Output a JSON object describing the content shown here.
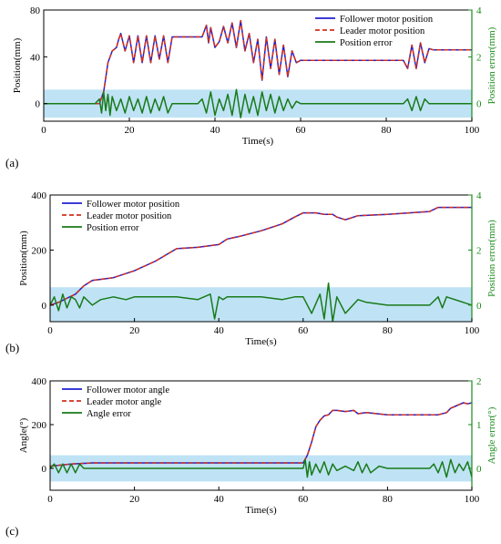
{
  "chart_data": [
    {
      "type": "line",
      "panel_label": "(a)",
      "xlabel": "Time(s)",
      "ylabel": "Position(mm)",
      "y2label": "Position error(mm)",
      "xlim": [
        0,
        100
      ],
      "ylim": [
        -15,
        80
      ],
      "y2lim": [
        -0.75,
        4
      ],
      "xticks": [
        "0",
        "20",
        "40",
        "60",
        "80",
        "100"
      ],
      "yticks": [
        "0",
        "40",
        "80"
      ],
      "y2ticks": [
        "0",
        "2",
        "4"
      ],
      "band": [
        -0.6,
        0.6
      ],
      "legend_position": "top-right",
      "colors": {
        "follower": "#2020d0",
        "leader": "#d03020",
        "error": "#1a7a1a",
        "band": "#bfe3f5",
        "y2axis": "#1a8a1a"
      },
      "series": [
        {
          "name": "Follower motor position",
          "axis": "left",
          "style": "solid",
          "x": [
            0,
            12,
            13,
            14,
            15,
            16,
            17,
            17.5,
            18,
            19,
            20,
            21,
            22,
            23,
            24,
            25,
            26,
            27,
            28,
            29,
            30,
            37,
            38,
            38.5,
            39,
            40,
            41,
            42,
            43,
            44,
            45,
            46,
            47,
            48,
            49,
            50,
            51,
            52,
            53,
            54,
            55,
            56,
            57,
            58,
            59,
            60,
            62,
            84,
            85,
            86,
            87,
            88,
            89,
            90,
            91,
            100
          ],
          "y": [
            0,
            0,
            0,
            10,
            35,
            45,
            48,
            55,
            60,
            45,
            58,
            35,
            58,
            35,
            58,
            35,
            58,
            38,
            58,
            35,
            57,
            57,
            67,
            52,
            65,
            48,
            53,
            66,
            52,
            69,
            48,
            71,
            45,
            60,
            35,
            55,
            20,
            57,
            30,
            55,
            25,
            50,
            23,
            45,
            35,
            37,
            37,
            37,
            30,
            50,
            30,
            52,
            35,
            47,
            46,
            46
          ]
        },
        {
          "name": "Leader motor position",
          "axis": "left",
          "style": "dashed",
          "x": [
            0,
            12,
            13,
            14,
            15,
            16,
            17,
            17.5,
            18,
            19,
            20,
            21,
            22,
            23,
            24,
            25,
            26,
            27,
            28,
            29,
            30,
            37,
            38,
            38.5,
            39,
            40,
            41,
            42,
            43,
            44,
            45,
            46,
            47,
            48,
            49,
            50,
            51,
            52,
            53,
            54,
            55,
            56,
            57,
            58,
            59,
            60,
            62,
            84,
            85,
            86,
            87,
            88,
            89,
            90,
            91,
            100
          ],
          "y": [
            0,
            0,
            0,
            10,
            35,
            45,
            48,
            55,
            60,
            45,
            58,
            35,
            58,
            35,
            58,
            35,
            58,
            38,
            58,
            35,
            57,
            57,
            67,
            52,
            65,
            48,
            53,
            66,
            52,
            69,
            48,
            71,
            45,
            60,
            35,
            55,
            20,
            57,
            30,
            55,
            25,
            50,
            23,
            45,
            35,
            37,
            37,
            37,
            30,
            50,
            30,
            52,
            35,
            47,
            46,
            46
          ]
        },
        {
          "name": "Position error",
          "axis": "right",
          "x": [
            0,
            12,
            13,
            13.5,
            14,
            14.5,
            15,
            15.5,
            16,
            17,
            18,
            19,
            20,
            21,
            22,
            23,
            24,
            25,
            26,
            27,
            28,
            29,
            30,
            36,
            37,
            38,
            39,
            40,
            41,
            42,
            43,
            44,
            45,
            46,
            47,
            48,
            49,
            50,
            51,
            52,
            53,
            54,
            55,
            56,
            57,
            58,
            59,
            60,
            84,
            85,
            86,
            87,
            88,
            89,
            90,
            100
          ],
          "y": [
            0,
            0,
            0.2,
            -0.4,
            0.5,
            -0.3,
            0.4,
            -0.5,
            0.3,
            -0.3,
            0.2,
            -0.4,
            0.3,
            -0.3,
            0.2,
            -0.4,
            0.3,
            -0.4,
            0.2,
            -0.3,
            0.3,
            -0.4,
            0,
            0,
            0.2,
            -0.4,
            0.5,
            -0.5,
            0.2,
            -0.3,
            0.4,
            -0.5,
            0.6,
            -0.6,
            0.4,
            -0.4,
            0.3,
            -0.5,
            0.5,
            -0.3,
            0.4,
            -0.4,
            0.3,
            -0.3,
            0.2,
            -0.2,
            0.1,
            0,
            0,
            0.2,
            -0.3,
            0.3,
            -0.3,
            0.2,
            0,
            0
          ]
        }
      ]
    },
    {
      "type": "line",
      "panel_label": "(b)",
      "xlabel": "Time(s)",
      "ylabel": "Position(mm)",
      "y2label": "Position error(mm)",
      "xlim": [
        0,
        100
      ],
      "ylim": [
        -60,
        400
      ],
      "y2lim": [
        -0.6,
        4
      ],
      "xticks": [
        "0",
        "20",
        "40",
        "60",
        "80",
        "100"
      ],
      "yticks": [
        "0",
        "200",
        "400"
      ],
      "y2ticks": [
        "0",
        "2",
        "4"
      ],
      "band": [
        -0.6,
        0.65
      ],
      "legend_position": "top-left",
      "colors": {
        "follower": "#2020d0",
        "leader": "#d03020",
        "error": "#1a7a1a",
        "band": "#bfe3f5",
        "y2axis": "#1a8a1a"
      },
      "series": [
        {
          "name": "Follower motor position",
          "axis": "left",
          "style": "solid",
          "x": [
            0,
            2,
            4,
            6,
            8,
            10,
            15,
            20,
            25,
            30,
            35,
            40,
            42,
            45,
            50,
            55,
            58,
            60,
            63,
            65,
            67,
            68,
            70,
            73,
            80,
            90,
            92,
            100
          ],
          "y": [
            0,
            10,
            25,
            40,
            70,
            90,
            100,
            125,
            160,
            205,
            210,
            220,
            240,
            250,
            270,
            295,
            320,
            335,
            335,
            330,
            330,
            320,
            310,
            325,
            330,
            340,
            355,
            355
          ]
        },
        {
          "name": "Leader motor position",
          "axis": "left",
          "style": "dashed",
          "x": [
            0,
            2,
            4,
            6,
            8,
            10,
            15,
            20,
            25,
            30,
            35,
            40,
            42,
            45,
            50,
            55,
            58,
            60,
            63,
            65,
            67,
            68,
            70,
            73,
            80,
            90,
            92,
            100
          ],
          "y": [
            0,
            10,
            25,
            40,
            70,
            90,
            100,
            125,
            160,
            205,
            210,
            220,
            240,
            250,
            270,
            295,
            320,
            335,
            335,
            330,
            330,
            320,
            310,
            325,
            330,
            340,
            355,
            355
          ]
        },
        {
          "name": "Position error",
          "axis": "right",
          "x": [
            0,
            1,
            2,
            3,
            4,
            5,
            6,
            7,
            8,
            10,
            12,
            15,
            18,
            20,
            25,
            30,
            35,
            38,
            39,
            40,
            41,
            42,
            45,
            48,
            50,
            55,
            58,
            60,
            62,
            64,
            65,
            66,
            67,
            68,
            70,
            73,
            75,
            80,
            85,
            90,
            92,
            93,
            94,
            100
          ],
          "y": [
            0,
            0.3,
            -0.2,
            0.4,
            -0.1,
            0.3,
            0.2,
            -0.1,
            0.3,
            0,
            0.2,
            0.3,
            0.2,
            0.3,
            0.3,
            0.3,
            0.2,
            0.4,
            -0.5,
            0.3,
            0.2,
            0.3,
            0.3,
            0.3,
            0.3,
            0.2,
            0.3,
            0.3,
            -0.3,
            0.4,
            -0.5,
            0.8,
            -0.6,
            0.3,
            -0.3,
            0.2,
            0.1,
            0,
            0,
            0,
            0.3,
            -0.1,
            0.3,
            0
          ]
        }
      ]
    },
    {
      "type": "line",
      "panel_label": "(c)",
      "xlabel": "Time(s)",
      "ylabel": "Angle(°)",
      "y2label": "Angle error(°)",
      "xlim": [
        0,
        100
      ],
      "ylim": [
        -100,
        400
      ],
      "y2lim": [
        -0.5,
        2
      ],
      "xticks": [
        "0",
        "20",
        "40",
        "60",
        "80",
        "100"
      ],
      "yticks": [
        "0",
        "200",
        "400"
      ],
      "y2ticks": [
        "0",
        "1",
        "2"
      ],
      "band": [
        -0.3,
        0.3
      ],
      "legend_position": "top-left",
      "colors": {
        "follower": "#2020d0",
        "leader": "#d03020",
        "error": "#1a7a1a",
        "band": "#bfe3f5",
        "y2axis": "#1a8a1a"
      },
      "series": [
        {
          "name": "Follower motor angle",
          "axis": "left",
          "style": "solid",
          "x": [
            0,
            5,
            10,
            15,
            60,
            61,
            62,
            63,
            64,
            65,
            66,
            67,
            68,
            70,
            72,
            73,
            75,
            80,
            85,
            90,
            92,
            94,
            95,
            98,
            99,
            100
          ],
          "y": [
            10,
            20,
            25,
            25,
            25,
            60,
            120,
            190,
            220,
            240,
            245,
            265,
            265,
            260,
            265,
            250,
            255,
            245,
            245,
            245,
            245,
            255,
            275,
            300,
            295,
            300
          ]
        },
        {
          "name": "Leader motor angle",
          "axis": "left",
          "style": "dashed",
          "x": [
            0,
            5,
            10,
            15,
            60,
            61,
            62,
            63,
            64,
            65,
            66,
            67,
            68,
            70,
            72,
            73,
            75,
            80,
            85,
            90,
            92,
            94,
            95,
            98,
            99,
            100
          ],
          "y": [
            10,
            20,
            25,
            25,
            25,
            60,
            120,
            190,
            220,
            240,
            245,
            265,
            265,
            260,
            265,
            250,
            255,
            245,
            245,
            245,
            245,
            255,
            275,
            300,
            295,
            300
          ]
        },
        {
          "name": "Angle error",
          "axis": "right",
          "x": [
            0,
            1,
            2,
            3,
            4,
            5,
            6,
            7,
            8,
            10,
            15,
            20,
            40,
            60,
            60.5,
            61,
            61.5,
            62,
            63,
            64,
            65,
            66,
            67,
            68,
            70,
            72,
            73,
            74,
            75,
            76,
            78,
            80,
            90,
            91,
            92,
            93,
            94,
            95,
            96,
            97,
            98,
            99,
            100
          ],
          "y": [
            0,
            0.1,
            -0.1,
            0.1,
            -0.1,
            0.1,
            -0.1,
            0.1,
            0,
            0,
            0,
            0,
            0,
            0,
            0.2,
            -0.2,
            0.15,
            -0.15,
            0.1,
            -0.1,
            0.15,
            -0.15,
            0.1,
            -0.05,
            0.05,
            -0.05,
            0.15,
            -0.1,
            0.1,
            -0.1,
            0.05,
            0,
            0,
            0.1,
            -0.1,
            0.15,
            -0.2,
            0.2,
            -0.1,
            0.1,
            -0.05,
            0.15,
            -0.2
          ]
        }
      ]
    }
  ]
}
